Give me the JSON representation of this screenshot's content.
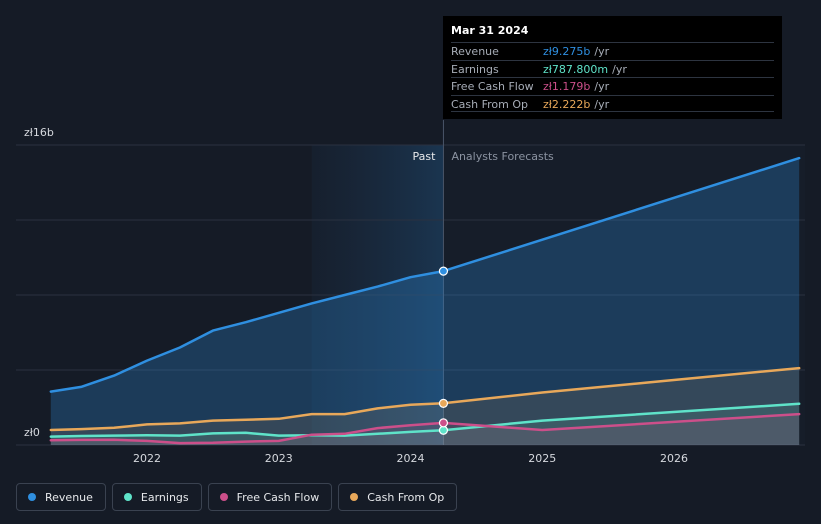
{
  "chart_data": {
    "type": "line",
    "y_axis": {
      "unit_label_top": "zł16b",
      "unit_label_bottom": "zł0",
      "ylim": [
        0,
        16
      ]
    },
    "x_axis": {
      "ticks": [
        "2022",
        "2023",
        "2024",
        "2025",
        "2026"
      ],
      "xlim": [
        2021.25,
        2026.95
      ]
    },
    "divider_labels": {
      "past": "Past",
      "forecast": "Analysts Forecasts"
    },
    "divider_x": 2024.25,
    "highlight_start_x": 2023.25,
    "series": [
      {
        "name": "Revenue",
        "color": "#2f8fe0",
        "points": [
          [
            2021.27,
            2.85
          ],
          [
            2021.5,
            3.1
          ],
          [
            2021.75,
            3.7
          ],
          [
            2022.0,
            4.5
          ],
          [
            2022.25,
            5.2
          ],
          [
            2022.5,
            6.1
          ],
          [
            2022.75,
            6.55
          ],
          [
            2023.0,
            7.05
          ],
          [
            2023.25,
            7.55
          ],
          [
            2023.5,
            8.0
          ],
          [
            2023.75,
            8.45
          ],
          [
            2024.0,
            8.95
          ],
          [
            2024.25,
            9.275
          ],
          [
            2026.95,
            15.3
          ]
        ]
      },
      {
        "name": "Earnings",
        "color": "#5fe3c9",
        "points": [
          [
            2021.27,
            0.45
          ],
          [
            2021.5,
            0.48
          ],
          [
            2021.75,
            0.5
          ],
          [
            2022.0,
            0.52
          ],
          [
            2022.25,
            0.5
          ],
          [
            2022.5,
            0.62
          ],
          [
            2022.75,
            0.65
          ],
          [
            2023.0,
            0.5
          ],
          [
            2023.25,
            0.52
          ],
          [
            2023.5,
            0.5
          ],
          [
            2023.75,
            0.6
          ],
          [
            2024.0,
            0.7
          ],
          [
            2024.25,
            0.7878
          ],
          [
            2025.0,
            1.3
          ],
          [
            2026.95,
            2.2
          ]
        ]
      },
      {
        "name": "Free Cash Flow",
        "color": "#cc4f8a",
        "points": [
          [
            2021.27,
            0.25
          ],
          [
            2021.5,
            0.27
          ],
          [
            2021.75,
            0.28
          ],
          [
            2022.0,
            0.22
          ],
          [
            2022.25,
            0.1
          ],
          [
            2022.5,
            0.12
          ],
          [
            2022.75,
            0.18
          ],
          [
            2023.0,
            0.22
          ],
          [
            2023.25,
            0.55
          ],
          [
            2023.5,
            0.6
          ],
          [
            2023.75,
            0.9
          ],
          [
            2024.0,
            1.05
          ],
          [
            2024.25,
            1.179
          ],
          [
            2025.0,
            0.8
          ],
          [
            2026.95,
            1.65
          ]
        ]
      },
      {
        "name": "Cash From Op",
        "color": "#e8a85a",
        "points": [
          [
            2021.27,
            0.8
          ],
          [
            2021.5,
            0.85
          ],
          [
            2021.75,
            0.92
          ],
          [
            2022.0,
            1.1
          ],
          [
            2022.25,
            1.15
          ],
          [
            2022.5,
            1.3
          ],
          [
            2022.75,
            1.35
          ],
          [
            2023.0,
            1.4
          ],
          [
            2023.25,
            1.65
          ],
          [
            2023.5,
            1.65
          ],
          [
            2023.75,
            1.95
          ],
          [
            2024.0,
            2.15
          ],
          [
            2024.25,
            2.222
          ],
          [
            2025.0,
            2.8
          ],
          [
            2026.95,
            4.1
          ]
        ]
      }
    ]
  },
  "tooltip": {
    "date": "Mar 31 2024",
    "unit": "/yr",
    "rows": [
      {
        "label": "Revenue",
        "value": "zł9.275b",
        "color": "#2f8fe0"
      },
      {
        "label": "Earnings",
        "value": "zł787.800m",
        "color": "#5fe3c9"
      },
      {
        "label": "Free Cash Flow",
        "value": "zł1.179b",
        "color": "#cc4f8a"
      },
      {
        "label": "Cash From Op",
        "value": "zł2.222b",
        "color": "#e8a85a"
      }
    ]
  },
  "legend": [
    {
      "label": "Revenue",
      "color": "#2f8fe0"
    },
    {
      "label": "Earnings",
      "color": "#5fe3c9"
    },
    {
      "label": "Free Cash Flow",
      "color": "#cc4f8a"
    },
    {
      "label": "Cash From Op",
      "color": "#e8a85a"
    }
  ]
}
